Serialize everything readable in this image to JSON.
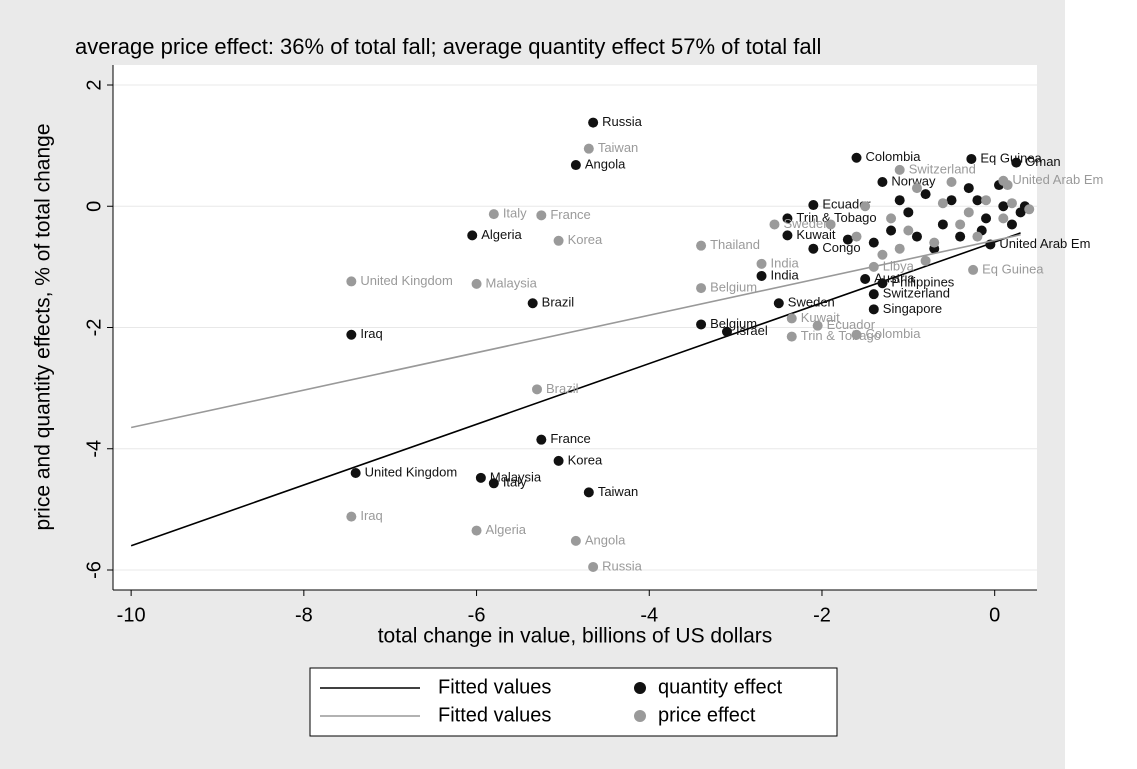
{
  "chart_data": {
    "type": "scatter",
    "title": "average price effect: 36% of total fall; average quantity effect 57% of total fall",
    "x_label": "total change in value, billions of US dollars",
    "y_label": "price and quantity effects, % of total change",
    "xlim": [
      -10.21,
      0.49
    ],
    "ylim": [
      -6.33,
      2.33
    ],
    "xticks": [
      -10,
      -8,
      -6,
      -4,
      -2,
      0
    ],
    "yticks": [
      -6,
      -4,
      -2,
      0,
      2
    ],
    "grid": true,
    "series": [
      {
        "name": "Fitted values",
        "type": "line",
        "color": "#000000",
        "x": [
          -10,
          0.3
        ],
        "values": [
          -5.6,
          -0.44
        ]
      },
      {
        "name": "quantity effect",
        "type": "scatter",
        "color": "#111111",
        "x": [
          -4.65,
          -4.85,
          -1.6,
          -0.27,
          0.25,
          -1.3,
          -2.1,
          -2.4,
          -2.4,
          -2.1,
          -6.05,
          -2.7,
          -5.35,
          -1.5,
          -1.3,
          -1.4,
          -1.4,
          -2.5,
          -3.4,
          -3.1,
          -7.45,
          -5.25,
          -5.05,
          -7.4,
          -5.95,
          -5.8,
          -4.7,
          -0.05,
          -0.3,
          -0.5,
          -0.8,
          -0.2,
          0.1,
          0.3,
          -1.0,
          -0.6,
          -0.1,
          0.2,
          -1.2,
          -0.9,
          -0.4,
          -1.4,
          -0.7,
          0.05,
          -0.15,
          0.35,
          -1.7,
          -1.1
        ],
        "values": [
          1.38,
          0.68,
          0.8,
          0.78,
          0.72,
          0.4,
          0.02,
          -0.2,
          -0.48,
          -0.7,
          -0.48,
          -1.15,
          -1.6,
          -1.2,
          -1.27,
          -1.45,
          -1.7,
          -1.6,
          -1.95,
          -2.07,
          -2.12,
          -3.85,
          -4.2,
          -4.4,
          -4.48,
          -4.57,
          -4.72,
          -0.63,
          0.3,
          0.1,
          0.2,
          0.1,
          0,
          -0.1,
          -0.1,
          -0.3,
          -0.2,
          -0.3,
          -0.4,
          -0.5,
          -0.5,
          -0.6,
          -0.7,
          0.35,
          -0.4,
          0,
          -0.55,
          0.1
        ],
        "labels": [
          "Russia",
          "Angola",
          "Colombia",
          "Eq Guinea",
          "Oman",
          "Norway",
          "Ecuador",
          "Trin & Tobago",
          "Kuwait",
          "Congo",
          "Algeria",
          "India",
          "Brazil",
          "Austria",
          "Philippines",
          "Switzerland",
          "Singapore",
          "Sweden",
          "Belgium",
          "Israel",
          "Iraq",
          "France",
          "Korea",
          "United Kingdom",
          "Malaysia",
          "Italy",
          "Taiwan",
          "United Arab Em",
          null,
          null,
          null,
          null,
          null,
          null,
          null,
          null,
          null,
          null,
          null,
          null,
          null,
          null,
          null,
          null,
          null,
          null,
          null,
          null
        ]
      },
      {
        "name": "Fitted values",
        "type": "line",
        "color": "#999999",
        "x": [
          -10,
          0.3
        ],
        "values": [
          -3.65,
          -0.47
        ]
      },
      {
        "name": "price effect",
        "type": "scatter",
        "color": "#9a9a9a",
        "x": [
          -4.7,
          -1.1,
          -5.8,
          -5.25,
          -5.05,
          -3.4,
          -2.55,
          -2.7,
          -7.45,
          -6.0,
          -3.4,
          -1.4,
          -0.25,
          -2.35,
          -2.05,
          -2.35,
          -1.6,
          -5.3,
          -7.45,
          -6.0,
          -4.85,
          -4.65,
          0.1,
          -1.5,
          -1.2,
          -0.9,
          -0.6,
          -0.3,
          -0.1,
          0.2,
          0.4,
          -1.0,
          -0.7,
          -0.4,
          -1.3,
          -0.8,
          -0.2,
          0.1,
          -1.6,
          -1.9,
          0.15,
          -0.5,
          -1.1
        ],
        "values": [
          0.95,
          0.6,
          -0.13,
          -0.15,
          -0.57,
          -0.65,
          -0.3,
          -0.95,
          -1.24,
          -1.28,
          -1.35,
          -1.0,
          -1.05,
          -1.85,
          -1.97,
          -2.15,
          -2.12,
          -3.02,
          -5.12,
          -5.35,
          -5.52,
          -5.95,
          0.42,
          0,
          -0.2,
          0.3,
          0.05,
          -0.1,
          0.1,
          0.05,
          -0.05,
          -0.4,
          -0.6,
          -0.3,
          -0.8,
          -0.9,
          -0.5,
          -0.2,
          -0.5,
          -0.3,
          0.35,
          0.4,
          -0.7
        ],
        "labels": [
          "Taiwan",
          "Switzerland",
          "Italy",
          "France",
          "Korea",
          "Thailand",
          "Sweden",
          "India",
          "United Kingdom",
          "Malaysia",
          "Belgium",
          "Libya",
          "Eq Guinea",
          "Kuwait",
          "Ecuador",
          "Trin & Tobago",
          "Colombia",
          "Brazil",
          "Iraq",
          "Algeria",
          "Angola",
          "Russia",
          "United Arab Em",
          null,
          null,
          null,
          null,
          null,
          null,
          null,
          null,
          null,
          null,
          null,
          null,
          null,
          null,
          null,
          null,
          null,
          null,
          null,
          null
        ]
      }
    ]
  }
}
